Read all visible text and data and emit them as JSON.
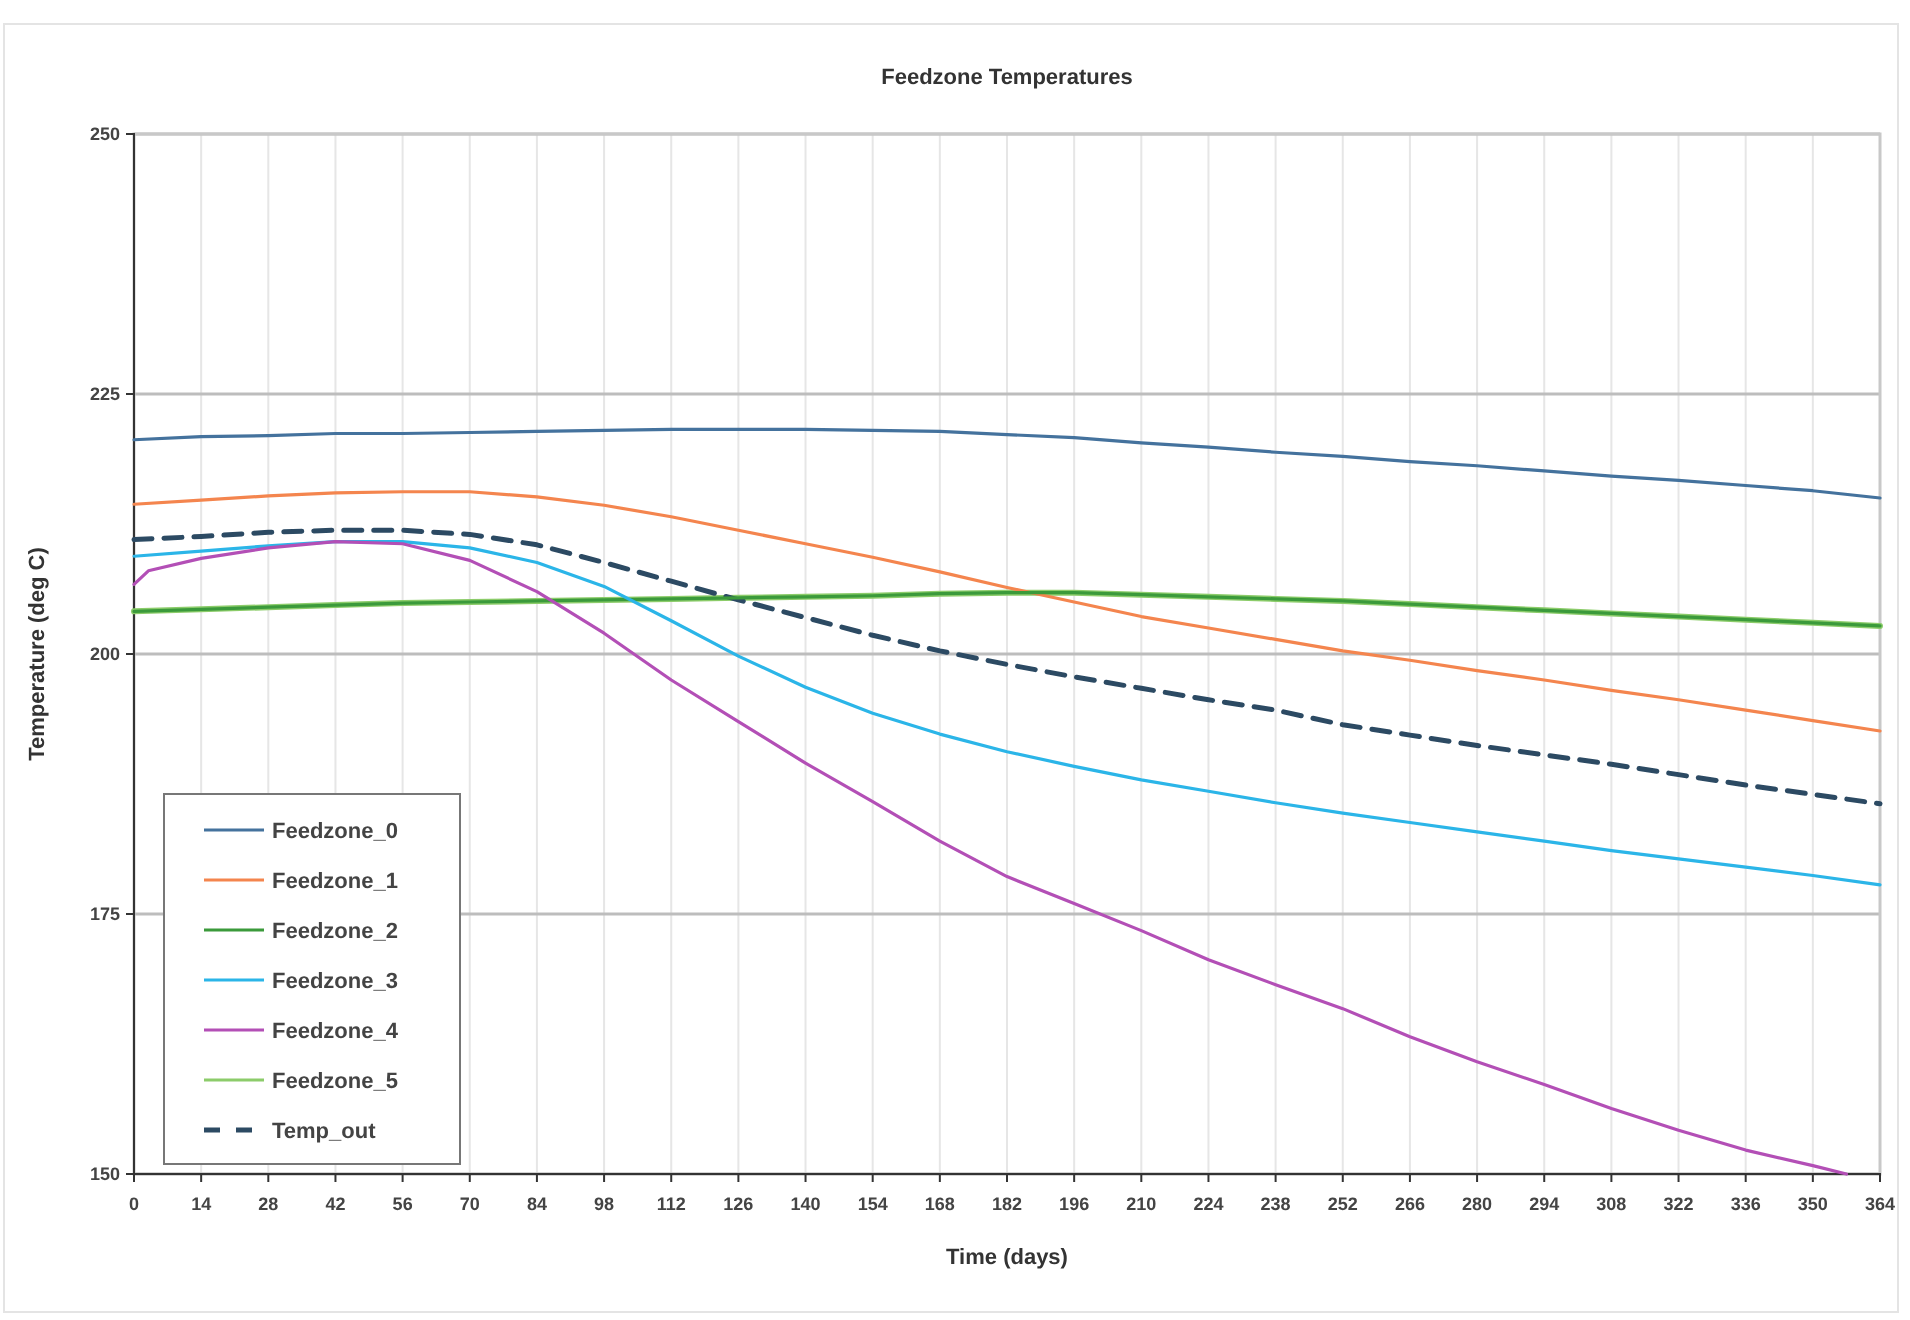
{
  "chart_data": {
    "type": "line",
    "title": "Feedzone Temperatures",
    "xlabel": "Time (days)",
    "ylabel": "Temperature (deg C)",
    "x": [
      0,
      14,
      28,
      42,
      56,
      70,
      84,
      98,
      112,
      126,
      140,
      154,
      168,
      182,
      196,
      210,
      224,
      238,
      252,
      266,
      280,
      294,
      308,
      322,
      336,
      350,
      364
    ],
    "xlim": [
      0,
      364
    ],
    "xticks": [
      0,
      14,
      28,
      42,
      56,
      70,
      84,
      98,
      112,
      126,
      140,
      154,
      168,
      182,
      196,
      210,
      224,
      238,
      252,
      266,
      280,
      294,
      308,
      322,
      336,
      350,
      364
    ],
    "ylim": [
      150,
      250
    ],
    "yticks": [
      150,
      175,
      200,
      225,
      250
    ],
    "grid": true,
    "legend": "bottom left",
    "marker": "none",
    "series": [
      {
        "name": "Feedzone_0",
        "color": "#44729d",
        "values": [
          220.6,
          220.9,
          221,
          221.2,
          221.2,
          221.3,
          221.4,
          221.5,
          221.6,
          221.6,
          221.6,
          221.5,
          221.4,
          221.1,
          220.8,
          220.3,
          219.9,
          219.4,
          219,
          218.5,
          218.1,
          217.6,
          217.1,
          216.7,
          216.2,
          215.7,
          215
        ]
      },
      {
        "name": "Feedzone_1",
        "color": "#f4854e",
        "values": [
          214.4,
          214.8,
          215.2,
          215.5,
          215.6,
          215.6,
          215.1,
          214.3,
          213.2,
          211.9,
          210.6,
          209.3,
          207.9,
          206.4,
          205,
          203.6,
          202.5,
          201.4,
          200.3,
          199.4,
          198.4,
          197.5,
          196.5,
          195.6,
          194.6,
          193.6,
          192.6
        ]
      },
      {
        "name": "Feedzone_2",
        "color": "#3b9a3b",
        "values": [
          204.1,
          204.3,
          204.5,
          204.7,
          204.9,
          205,
          205.1,
          205.2,
          205.3,
          205.4,
          205.5,
          205.6,
          205.8,
          205.9,
          205.9,
          205.7,
          205.5,
          205.3,
          205.1,
          204.8,
          204.5,
          204.2,
          203.9,
          203.6,
          203.3,
          203,
          202.7
        ]
      },
      {
        "name": "Feedzone_3",
        "color": "#2bb5e8",
        "values": [
          209.4,
          209.9,
          210.4,
          210.8,
          210.8,
          210.2,
          208.8,
          206.5,
          203.2,
          199.8,
          196.8,
          194.3,
          192.3,
          190.6,
          189.2,
          187.9,
          186.8,
          185.7,
          184.7,
          183.8,
          182.9,
          182,
          181.1,
          180.3,
          179.5,
          178.7,
          177.8
        ]
      },
      {
        "name": "Feedzone_4",
        "color": "#b34fb6",
        "x": [
          0,
          3,
          14,
          28,
          42,
          56,
          70,
          84,
          98,
          112,
          126,
          140,
          154,
          168,
          182,
          196,
          210,
          224,
          238,
          252,
          266,
          280,
          294,
          308,
          322,
          336,
          350,
          357
        ],
        "values": [
          206.7,
          208,
          209.2,
          210.2,
          210.8,
          210.6,
          209,
          206,
          202,
          197.5,
          193.5,
          189.5,
          185.8,
          182,
          178.6,
          176,
          173.4,
          170.6,
          168.2,
          165.9,
          163.2,
          160.8,
          158.6,
          156.3,
          154.2,
          152.3,
          150.8,
          150
        ]
      },
      {
        "name": "Feedzone_5",
        "color": "#8ccc6a",
        "values": [
          204.1,
          204.3,
          204.5,
          204.7,
          204.9,
          205,
          205.1,
          205.2,
          205.3,
          205.4,
          205.5,
          205.6,
          205.8,
          205.9,
          205.9,
          205.7,
          205.5,
          205.3,
          205.1,
          204.8,
          204.5,
          204.2,
          203.9,
          203.6,
          203.3,
          203,
          202.7
        ]
      },
      {
        "name": "Temp_out",
        "color": "#2c4a63",
        "line_style": "dashed",
        "values": [
          211,
          211.3,
          211.7,
          211.9,
          211.9,
          211.5,
          210.5,
          208.8,
          207,
          205.2,
          203.5,
          201.8,
          200.3,
          199,
          197.8,
          196.7,
          195.6,
          194.6,
          193.2,
          192.2,
          191.2,
          190.3,
          189.4,
          188.4,
          187.4,
          186.5,
          185.6
        ]
      }
    ]
  }
}
